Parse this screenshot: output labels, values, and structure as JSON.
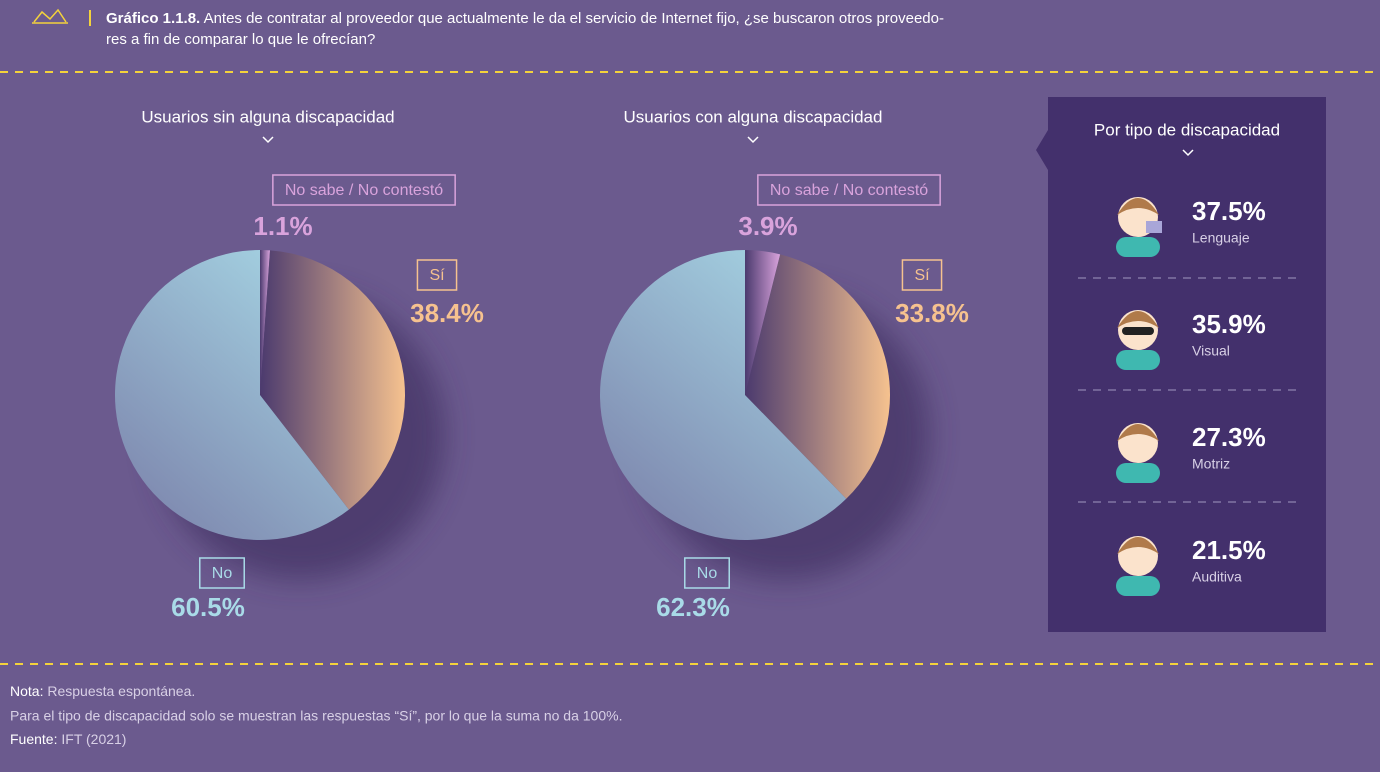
{
  "header": {
    "label": "Gráfico 1.1.8.",
    "text": "Antes de contratar al proveedor que actualmente le da el servicio de Internet fijo, ¿se buscaron otros proveedo-",
    "text2": "res a fin de comparar lo que le ofrecían?"
  },
  "chart_data": [
    {
      "type": "pie",
      "title": "Usuarios sin alguna discapacidad",
      "categories": [
        "No sabe / No contestó",
        "Sí",
        "No"
      ],
      "values": [
        1.1,
        38.4,
        60.5
      ],
      "value_labels": [
        "1.1%",
        "38.4%",
        "60.5%"
      ],
      "colors": [
        "#d9a3dc",
        "#f6c28f",
        "#a9dbe8"
      ]
    },
    {
      "type": "pie",
      "title": "Usuarios con alguna discapacidad",
      "categories": [
        "No sabe / No contestó",
        "Sí",
        "No"
      ],
      "values": [
        3.9,
        33.8,
        62.3
      ],
      "value_labels": [
        "3.9%",
        "33.8%",
        "62.3%"
      ],
      "colors": [
        "#d9a3dc",
        "#f6c28f",
        "#a9dbe8"
      ]
    }
  ],
  "panel": {
    "title": "Por tipo de discapacidad",
    "items": [
      {
        "value": "37.5%",
        "label": "Lenguaje"
      },
      {
        "value": "35.9%",
        "label": "Visual"
      },
      {
        "value": "27.3%",
        "label": "Motriz"
      },
      {
        "value": "21.5%",
        "label": "Auditiva"
      }
    ]
  },
  "notes": {
    "nota_label": "Nota:",
    "nota": "Respuesta espontánea.",
    "line2": "Para el tipo de discapacidad solo se muestran las respuestas “Sí”, por lo que la suma no da 100%.",
    "fuente_label": "Fuente:",
    "fuente": "IFT (2021)"
  }
}
